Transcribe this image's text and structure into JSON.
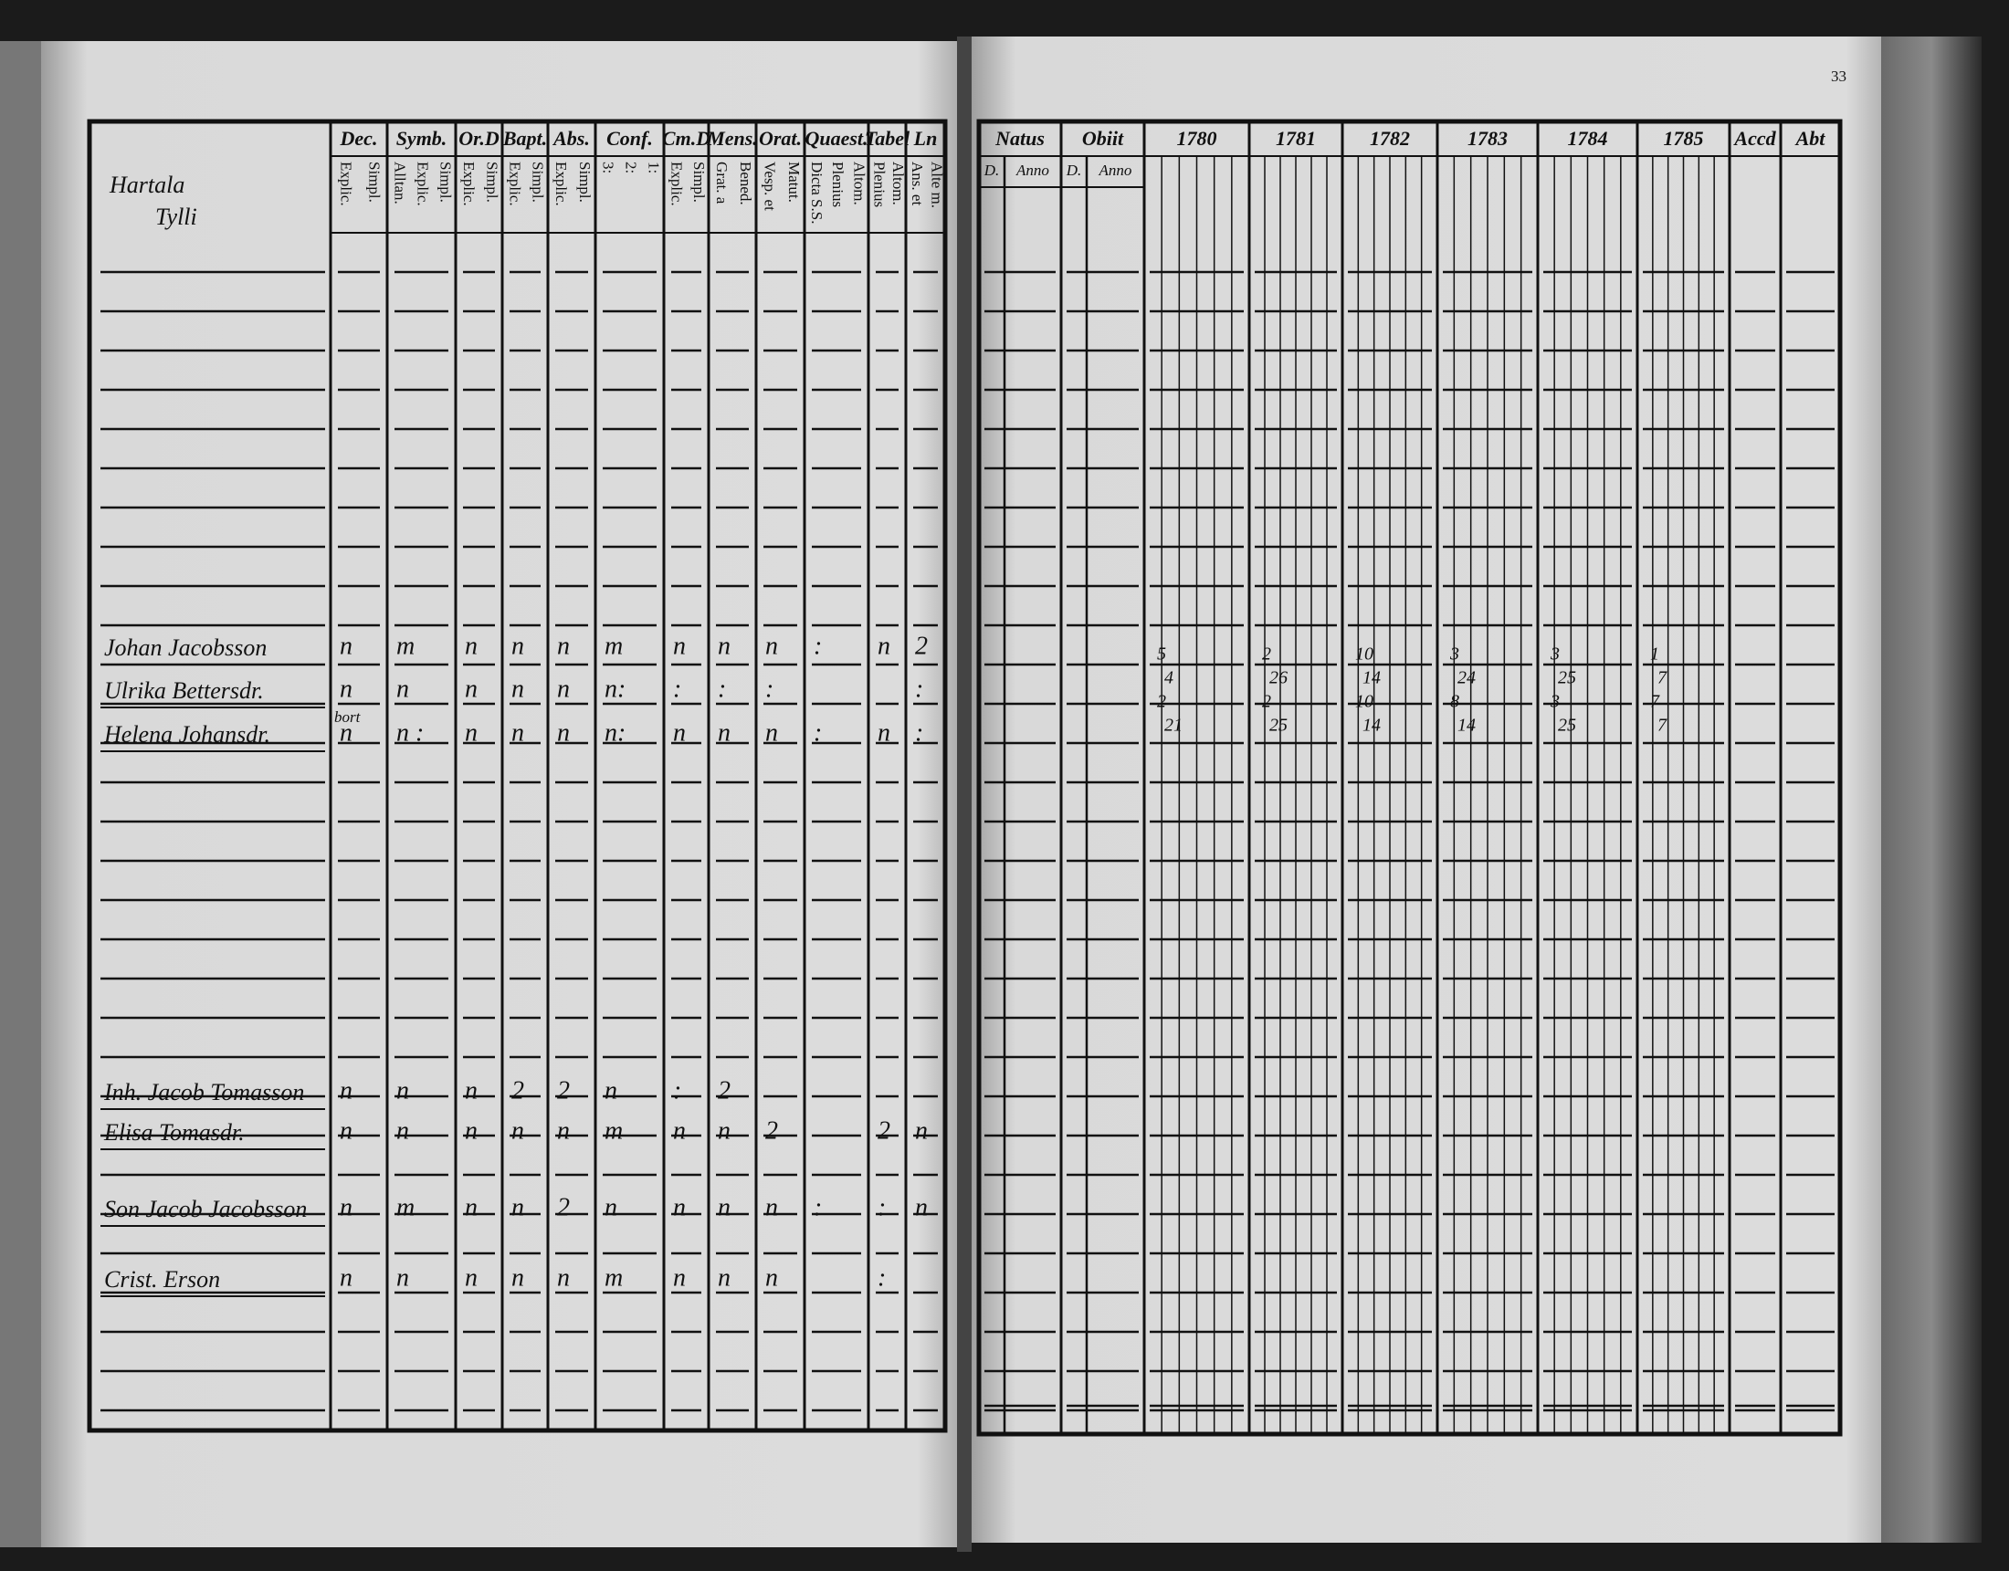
{
  "left_page": {
    "title": "Hartala",
    "subtitle": "Tylli",
    "columns": [
      {
        "header": "Dec.",
        "sub": [
          "Explic.",
          "Simpl."
        ]
      },
      {
        "header": "Symb.",
        "sub": [
          "Alltan.",
          "Explic.",
          "Simpl."
        ]
      },
      {
        "header": "Or.D",
        "sub": [
          "Explic.",
          "Simpl."
        ]
      },
      {
        "header": "Bapt.",
        "sub": [
          "Explic.",
          "Simpl."
        ]
      },
      {
        "header": "Abs.",
        "sub": [
          "Explic.",
          "Simpl."
        ]
      },
      {
        "header": "Conf.",
        "sub": [
          "3:",
          "2:",
          "1:"
        ]
      },
      {
        "header": "Cm.D",
        "sub": [
          "Explic.",
          "Simpl."
        ]
      },
      {
        "header": "Mens.",
        "sub": [
          "Grat. a",
          "Bened."
        ]
      },
      {
        "header": "Orat.",
        "sub": [
          "Vesp. et",
          "Matut."
        ]
      },
      {
        "header": "Quaest.",
        "sub": [
          "Dicta S.S.",
          "Plenius",
          "Altom."
        ]
      },
      {
        "header": "Tabel",
        "sub": [
          "Plenius",
          "Altom."
        ]
      },
      {
        "header": "Ln",
        "sub": [
          "Ans. et",
          "Alte m."
        ]
      }
    ],
    "rows": [
      {
        "name": "Johan Jacobsson",
        "marks": [
          "n",
          "m",
          "n",
          "n",
          "n",
          "m",
          "n",
          "n",
          "n",
          ":",
          "n",
          "2"
        ]
      },
      {
        "name": "Ulrika Bettersdr.",
        "marks": [
          "n",
          "n",
          "n",
          "n",
          "n",
          "n:",
          ":",
          ":",
          ":",
          null,
          null,
          ":"
        ]
      },
      {
        "name": "Helena Johansdr.",
        "note": "bort",
        "marks": [
          "n",
          "n :",
          "n",
          "n",
          "n",
          "n:",
          "n",
          "n",
          "n",
          ":",
          "n",
          ":"
        ]
      },
      {
        "name": "Inh. Jacob Tomasson",
        "marks": [
          "n",
          "n",
          "n",
          "2",
          "2",
          "n",
          ":",
          "2",
          null,
          null,
          null,
          null
        ]
      },
      {
        "name": "Elisa Tomasdr.",
        "marks": [
          "n",
          "n",
          "n",
          "n",
          "n",
          "m",
          "n",
          "n",
          "2",
          null,
          "2",
          "n"
        ]
      },
      {
        "name": "Son Jacob Jacobsson",
        "marks": [
          "n",
          "m",
          "n",
          "n",
          "2",
          "n",
          "n",
          "n",
          "n",
          ":",
          ":",
          "n"
        ]
      },
      {
        "name": "Crist. Erson",
        "marks": [
          "n",
          "n",
          "n",
          "n",
          "n",
          "m",
          "n",
          "n",
          "n",
          null,
          ":",
          null
        ]
      }
    ]
  },
  "right_page": {
    "page_number": "33",
    "columns": [
      {
        "header": "Natus",
        "sub": [
          "D.",
          "Anno"
        ]
      },
      {
        "header": "Obiit",
        "sub": [
          "D.",
          "Anno"
        ]
      },
      {
        "header": "1780",
        "values": [
          "5",
          "4",
          "2",
          "21"
        ]
      },
      {
        "header": "1781",
        "values": [
          "2",
          "26",
          "2",
          "25"
        ]
      },
      {
        "header": "1782",
        "values": [
          "10",
          "14",
          "10",
          "14"
        ]
      },
      {
        "header": "1783",
        "values": [
          "3",
          "24",
          "8",
          "14"
        ]
      },
      {
        "header": "1784",
        "values": [
          "3",
          "25",
          "3",
          "25"
        ]
      },
      {
        "header": "1785",
        "values": [
          "1",
          "7",
          "7",
          "7"
        ]
      },
      {
        "header": "Accd"
      },
      {
        "header": "Abt"
      }
    ]
  }
}
